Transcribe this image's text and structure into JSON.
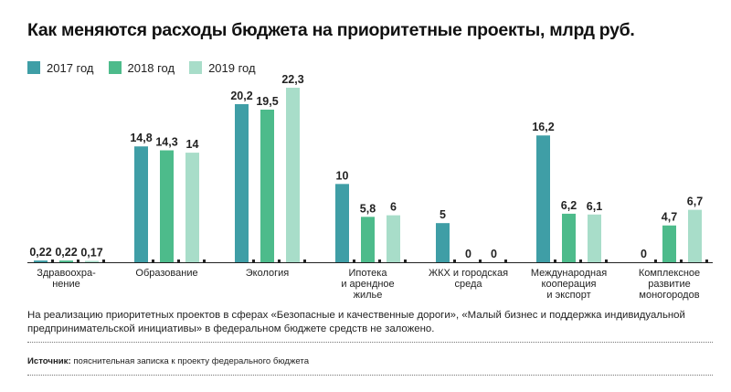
{
  "title": "Как меняются расходы бюджета на приоритетные проекты, млрд руб.",
  "colors": {
    "s2017": "#3f9ea6",
    "s2018": "#4dbb8b",
    "s2019": "#a8ddc9"
  },
  "chart_data": {
    "type": "bar",
    "title": "Как меняются расходы бюджета на приоритетные проекты, млрд руб.",
    "legend_placement": "top-left",
    "grid": false,
    "ylim": [
      0,
      23
    ],
    "categories": [
      [
        "Здравоохра-",
        "нение"
      ],
      [
        "Образование"
      ],
      [
        "Экология"
      ],
      [
        "Ипотека",
        "и арендное",
        "жилье"
      ],
      [
        "ЖКХ и городская",
        "среда"
      ],
      [
        "Международная",
        "кооперация",
        "и экспорт"
      ],
      [
        "Комплексное",
        "развитие",
        "моногородов"
      ]
    ],
    "series": [
      {
        "name": "2017 год",
        "values": [
          0.22,
          14.8,
          20.2,
          10,
          5,
          16.2,
          0
        ],
        "labels": [
          "0,22",
          "14,8",
          "20,2",
          "10",
          "5",
          "16,2",
          "0"
        ]
      },
      {
        "name": "2018 год",
        "values": [
          0.22,
          14.3,
          19.5,
          5.8,
          0,
          6.2,
          4.7
        ],
        "labels": [
          "0,22",
          "14,3",
          "19,5",
          "5,8",
          "0",
          "6,2",
          "4,7"
        ]
      },
      {
        "name": "2019 год",
        "values": [
          0.17,
          14,
          22.3,
          6,
          0,
          6.1,
          6.7
        ],
        "labels": [
          "0,17",
          "14",
          "22,3",
          "6",
          "0",
          "6,1",
          "6,7"
        ]
      }
    ]
  },
  "note": "На реализацию приоритетных проектов  в сферах «Безопасные и качественные дороги», «Малый бизнес и поддержка индивидуальной предпринимательской инициативы» в федеральном бюджете средств не заложено.",
  "source": {
    "label": "Источник:",
    "text": " пояснительная записка к проекту федерального бюджета"
  }
}
